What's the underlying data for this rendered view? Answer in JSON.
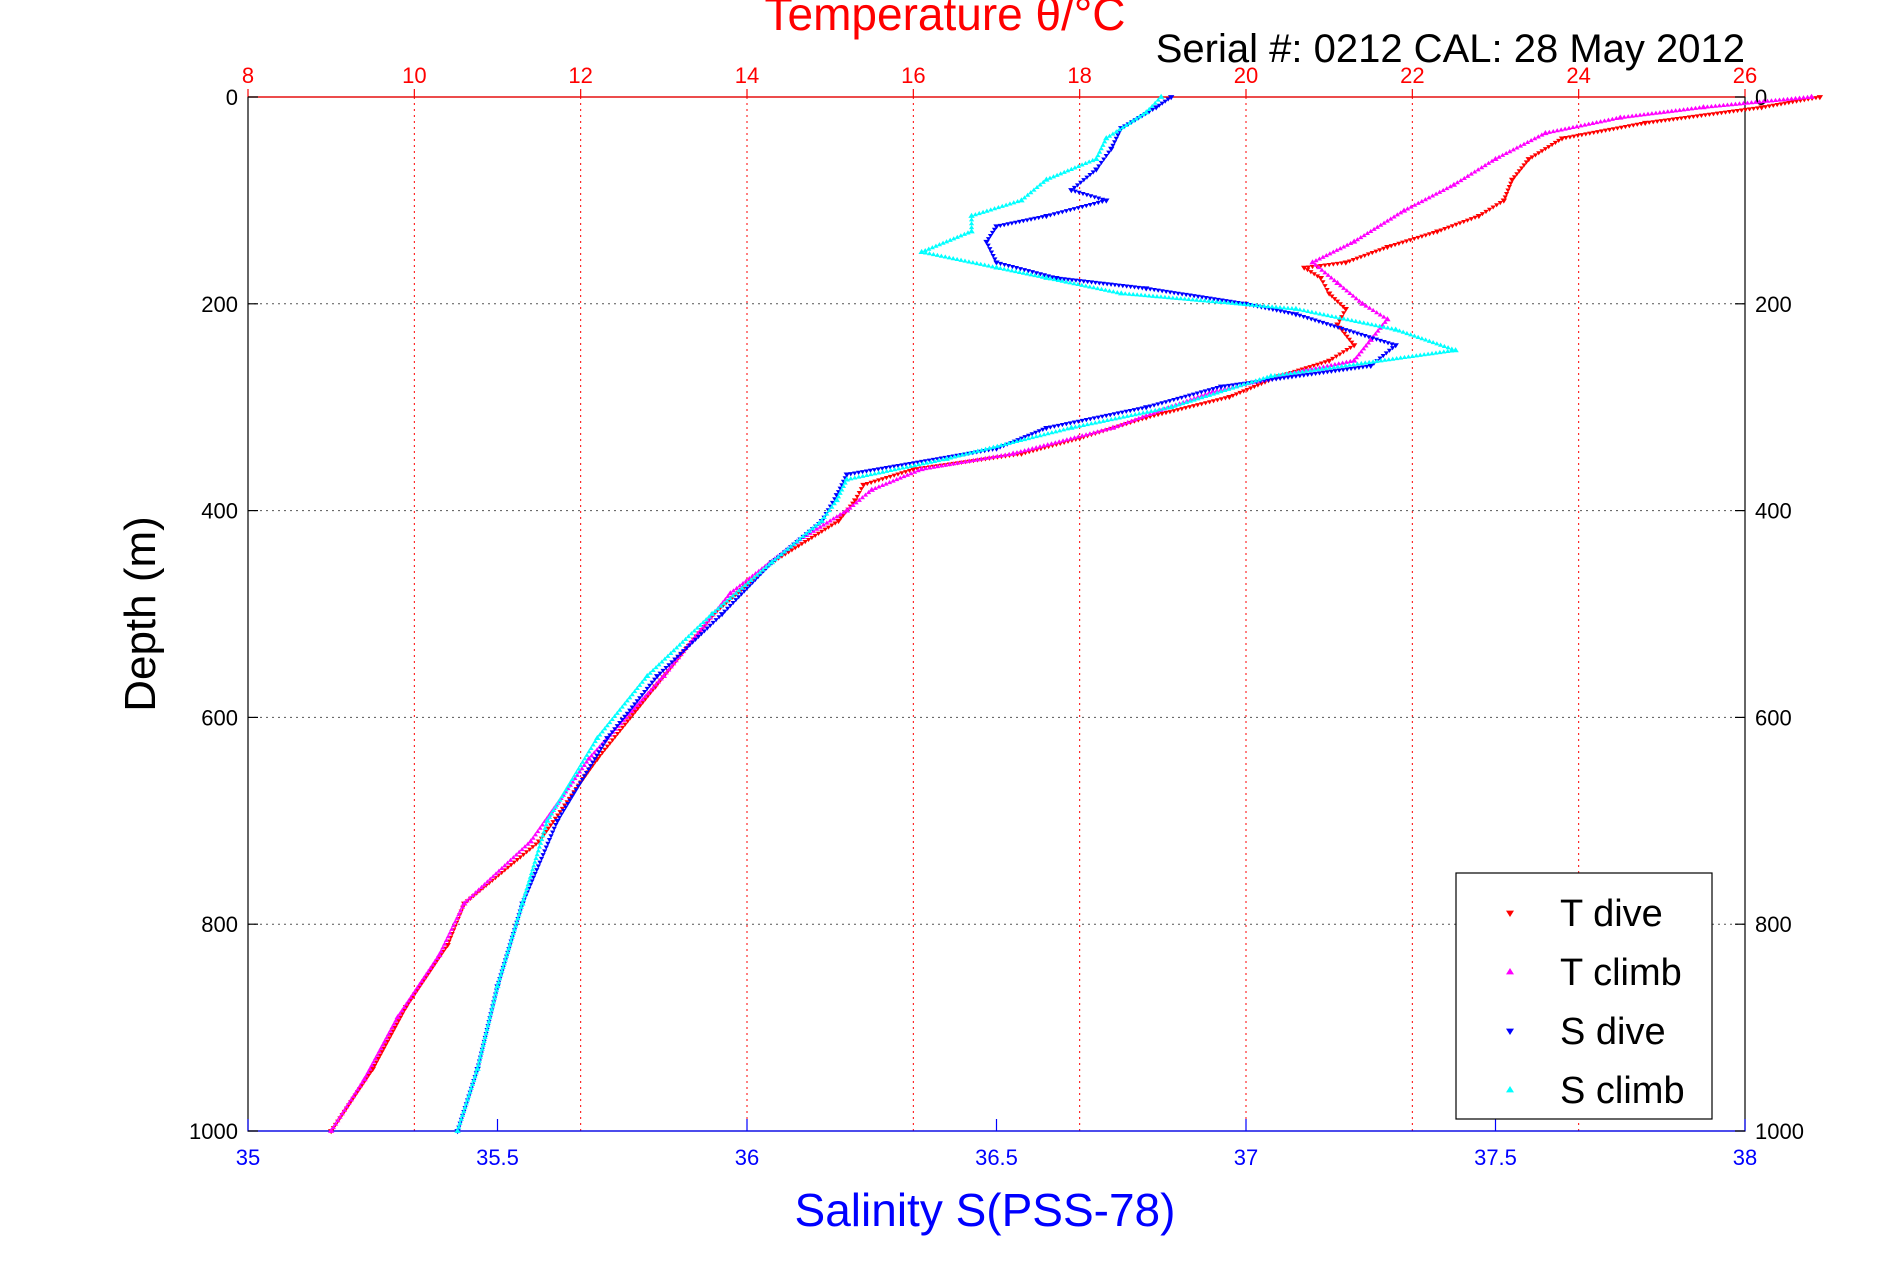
{
  "chart_data": {
    "type": "scatter",
    "title": "Temperature θ/°C",
    "subtitle": "Serial #: 0212  CAL: 28 May 2012",
    "ylabel": "Depth (m)",
    "xlabel_bottom": "Salinity S(PSS-78)",
    "temperature_axis": {
      "position": "top",
      "range": [
        8,
        26
      ],
      "ticks": [
        8,
        10,
        12,
        14,
        16,
        18,
        20,
        22,
        24,
        26
      ]
    },
    "salinity_axis": {
      "position": "bottom",
      "range": [
        35,
        38
      ],
      "ticks": [
        35,
        35.5,
        36,
        36.5,
        37,
        37.5,
        38
      ]
    },
    "depth_axis": {
      "reversed": true,
      "range": [
        0,
        1000
      ],
      "ticks": [
        0,
        200,
        400,
        600,
        800,
        1000
      ]
    },
    "grid": true,
    "legend_position": "bottom-right",
    "colors": {
      "temperature_axis": "#ff0000",
      "salinity_axis": "#0000ff",
      "grid": "#555555"
    },
    "series": [
      {
        "name": "T dive",
        "axis": "temperature",
        "marker": "triangle-down",
        "color": "#ff0000",
        "points": [
          [
            26.9,
            0
          ],
          [
            26.2,
            10
          ],
          [
            24.8,
            25
          ],
          [
            23.8,
            40
          ],
          [
            23.4,
            60
          ],
          [
            23.2,
            80
          ],
          [
            23.1,
            100
          ],
          [
            22.8,
            115
          ],
          [
            22.3,
            130
          ],
          [
            21.7,
            145
          ],
          [
            21.2,
            160
          ],
          [
            20.7,
            165
          ],
          [
            20.9,
            175
          ],
          [
            21.0,
            190
          ],
          [
            21.2,
            205
          ],
          [
            21.1,
            220
          ],
          [
            21.3,
            240
          ],
          [
            21.0,
            255
          ],
          [
            20.4,
            270
          ],
          [
            19.8,
            290
          ],
          [
            18.8,
            310
          ],
          [
            18.0,
            330
          ],
          [
            17.3,
            345
          ],
          [
            16.0,
            360
          ],
          [
            15.4,
            375
          ],
          [
            15.3,
            390
          ],
          [
            15.1,
            410
          ],
          [
            14.3,
            450
          ],
          [
            13.6,
            500
          ],
          [
            12.9,
            570
          ],
          [
            12.2,
            640
          ],
          [
            11.5,
            720
          ],
          [
            10.6,
            780
          ],
          [
            10.4,
            820
          ],
          [
            9.9,
            880
          ],
          [
            9.5,
            940
          ],
          [
            9.0,
            1000
          ]
        ]
      },
      {
        "name": "T climb",
        "axis": "temperature",
        "marker": "triangle-up",
        "color": "#ff00ff",
        "points": [
          [
            26.8,
            0
          ],
          [
            25.5,
            10
          ],
          [
            24.5,
            20
          ],
          [
            23.6,
            35
          ],
          [
            23.0,
            60
          ],
          [
            22.5,
            85
          ],
          [
            21.9,
            110
          ],
          [
            21.3,
            140
          ],
          [
            20.8,
            160
          ],
          [
            21.1,
            180
          ],
          [
            21.4,
            200
          ],
          [
            21.7,
            215
          ],
          [
            21.5,
            235
          ],
          [
            21.3,
            255
          ],
          [
            20.7,
            265
          ],
          [
            19.6,
            285
          ],
          [
            18.4,
            320
          ],
          [
            17.2,
            345
          ],
          [
            16.1,
            360
          ],
          [
            15.5,
            380
          ],
          [
            15.2,
            400
          ],
          [
            14.6,
            430
          ],
          [
            13.8,
            480
          ],
          [
            13.0,
            560
          ],
          [
            12.1,
            640
          ],
          [
            11.4,
            720
          ],
          [
            10.6,
            780
          ],
          [
            10.3,
            830
          ],
          [
            9.8,
            890
          ],
          [
            9.4,
            950
          ],
          [
            9.0,
            1000
          ]
        ]
      },
      {
        "name": "S dive",
        "axis": "salinity",
        "marker": "triangle-down",
        "color": "#0000ff",
        "points": [
          [
            36.85,
            0
          ],
          [
            36.82,
            10
          ],
          [
            36.75,
            30
          ],
          [
            36.73,
            50
          ],
          [
            36.7,
            70
          ],
          [
            36.65,
            90
          ],
          [
            36.72,
            100
          ],
          [
            36.6,
            115
          ],
          [
            36.5,
            125
          ],
          [
            36.48,
            140
          ],
          [
            36.5,
            160
          ],
          [
            36.62,
            175
          ],
          [
            36.8,
            185
          ],
          [
            37.0,
            200
          ],
          [
            37.1,
            210
          ],
          [
            37.3,
            240
          ],
          [
            37.25,
            260
          ],
          [
            36.95,
            280
          ],
          [
            36.8,
            300
          ],
          [
            36.6,
            320
          ],
          [
            36.5,
            340
          ],
          [
            36.2,
            365
          ],
          [
            36.18,
            385
          ],
          [
            36.15,
            410
          ],
          [
            36.05,
            450
          ],
          [
            35.95,
            500
          ],
          [
            35.82,
            560
          ],
          [
            35.72,
            620
          ],
          [
            35.62,
            700
          ],
          [
            35.55,
            780
          ],
          [
            35.5,
            860
          ],
          [
            35.46,
            940
          ],
          [
            35.42,
            1000
          ]
        ]
      },
      {
        "name": "S climb",
        "axis": "salinity",
        "marker": "triangle-up",
        "color": "#00ffff",
        "points": [
          [
            36.83,
            0
          ],
          [
            36.8,
            15
          ],
          [
            36.72,
            40
          ],
          [
            36.7,
            60
          ],
          [
            36.6,
            80
          ],
          [
            36.55,
            100
          ],
          [
            36.45,
            115
          ],
          [
            36.45,
            130
          ],
          [
            36.35,
            150
          ],
          [
            36.5,
            165
          ],
          [
            36.6,
            175
          ],
          [
            36.75,
            190
          ],
          [
            37.1,
            205
          ],
          [
            37.3,
            225
          ],
          [
            37.42,
            245
          ],
          [
            37.05,
            270
          ],
          [
            36.85,
            300
          ],
          [
            36.65,
            320
          ],
          [
            36.4,
            350
          ],
          [
            36.2,
            370
          ],
          [
            36.18,
            390
          ],
          [
            36.15,
            410
          ],
          [
            36.05,
            450
          ],
          [
            35.93,
            500
          ],
          [
            35.8,
            560
          ],
          [
            35.7,
            620
          ],
          [
            35.6,
            700
          ],
          [
            35.55,
            780
          ],
          [
            35.5,
            860
          ],
          [
            35.46,
            940
          ],
          [
            35.42,
            1000
          ]
        ]
      }
    ]
  }
}
